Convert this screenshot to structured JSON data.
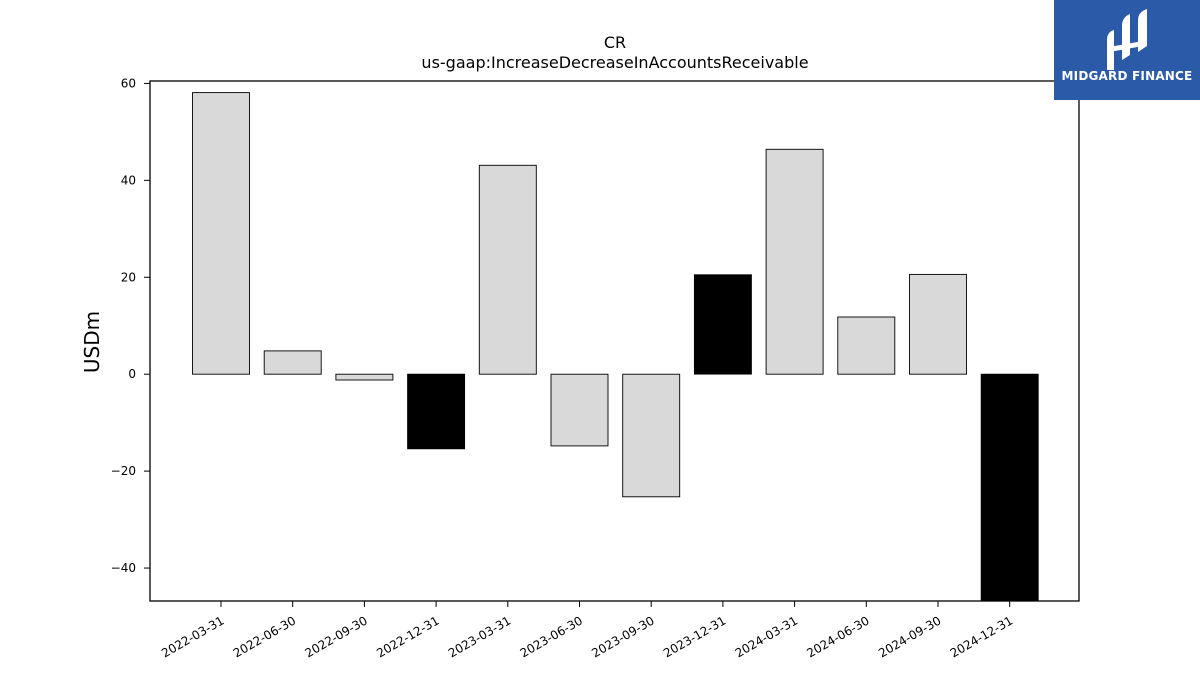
{
  "chart_data": {
    "type": "bar",
    "title": "CR",
    "subtitle": "us-gaap:IncreaseDecreaseInAccountsReceivable",
    "xlabel": "",
    "ylabel": "USDm",
    "ylim": [
      -46.8,
      60.5
    ],
    "yticks": [
      60,
      40,
      20,
      0,
      -20,
      -40
    ],
    "ytick_labels": [
      "60",
      "40",
      "20",
      "0",
      "−20",
      "−40"
    ],
    "categories": [
      "2022-03-31",
      "2022-06-30",
      "2022-09-30",
      "2022-12-31",
      "2023-03-31",
      "2023-06-30",
      "2023-09-30",
      "2023-12-31",
      "2024-03-31",
      "2024-06-30",
      "2024-09-30",
      "2024-12-31"
    ],
    "values": [
      58.1,
      4.8,
      -1.2,
      -15.4,
      43.1,
      -14.8,
      -25.3,
      20.5,
      46.4,
      11.8,
      20.6,
      -46.8
    ],
    "bar_colors": [
      "#d9d9d9",
      "#d9d9d9",
      "#d9d9d9",
      "#000000",
      "#d9d9d9",
      "#d9d9d9",
      "#d9d9d9",
      "#000000",
      "#d9d9d9",
      "#d9d9d9",
      "#d9d9d9",
      "#000000"
    ],
    "grid": false,
    "legend": "none"
  },
  "logo": {
    "text": "MIDGARD FINANCE",
    "color": "#2b5aa8"
  }
}
